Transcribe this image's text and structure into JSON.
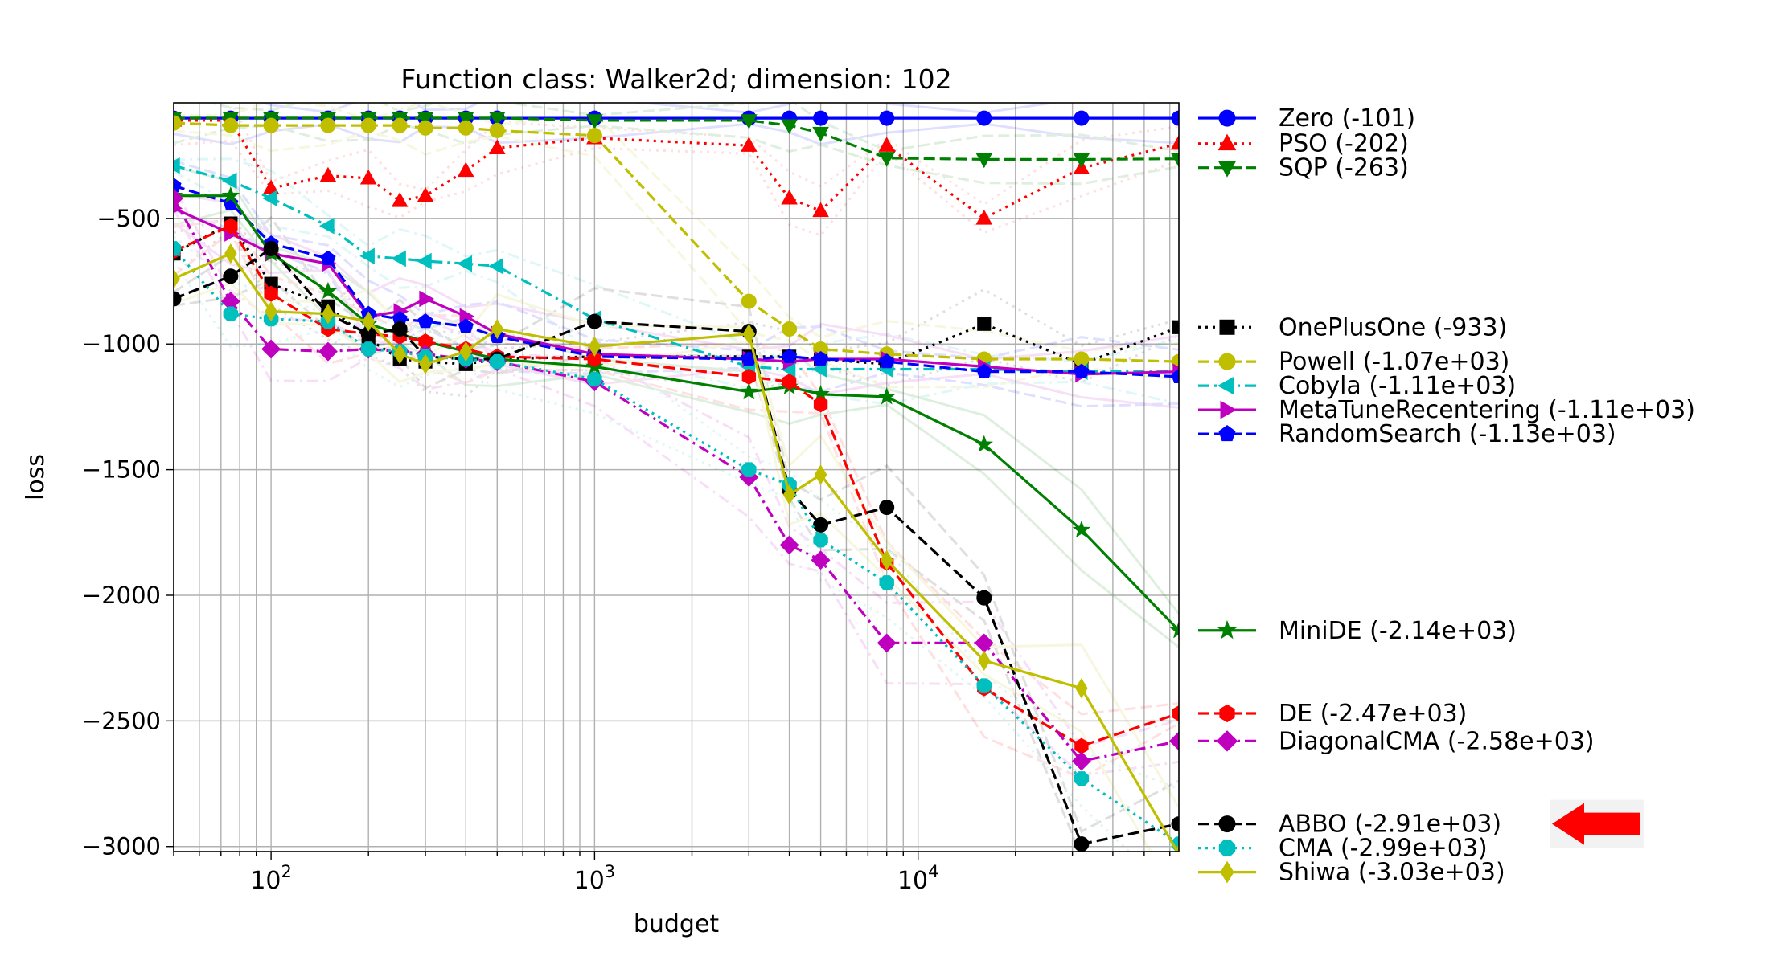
{
  "chart_data": {
    "type": "line",
    "title": "Function class: Walker2d; dimension: 102",
    "xlabel": "budget",
    "ylabel": "loss",
    "xscale": "log",
    "xlim": [
      50,
      64000
    ],
    "ylim": [
      -3020,
      -40
    ],
    "grid": true,
    "legend_position": "right-outside",
    "x_tick_labels": [
      {
        "value": 100,
        "base": "10",
        "exp": "2"
      },
      {
        "value": 1000,
        "base": "10",
        "exp": "3"
      },
      {
        "value": 10000,
        "base": "10",
        "exp": "4"
      }
    ],
    "y_ticks": [
      -500,
      -1000,
      -1500,
      -2000,
      -2500,
      -3000
    ],
    "y_tick_labels": [
      "−500",
      "−1000",
      "−1500",
      "−2000",
      "−2500",
      "−3000"
    ],
    "highlight_arrow": {
      "color": "#ff0000",
      "points_to": "ABBO (-2.91e+03)"
    },
    "series": [
      {
        "name": "Zero (-101)",
        "color": "#0000ff",
        "marker": "circle",
        "dash": "solid",
        "legend_y": -101,
        "points": [
          [
            50,
            -101
          ],
          [
            75,
            -101
          ],
          [
            100,
            -101
          ],
          [
            150,
            -101
          ],
          [
            200,
            -101
          ],
          [
            250,
            -101
          ],
          [
            300,
            -101
          ],
          [
            400,
            -101
          ],
          [
            500,
            -101
          ],
          [
            1000,
            -101
          ],
          [
            3000,
            -101
          ],
          [
            4000,
            -101
          ],
          [
            5000,
            -101
          ],
          [
            8000,
            -101
          ],
          [
            16000,
            -101
          ],
          [
            32000,
            -101
          ],
          [
            64000,
            -101
          ]
        ]
      },
      {
        "name": "PSO (-202)",
        "color": "#ff0000",
        "marker": "triangle-up",
        "dash": "dotted",
        "legend_y": -202,
        "points": [
          [
            50,
            -110
          ],
          [
            75,
            -110
          ],
          [
            100,
            -380
          ],
          [
            150,
            -330
          ],
          [
            200,
            -340
          ],
          [
            250,
            -430
          ],
          [
            300,
            -410
          ],
          [
            400,
            -310
          ],
          [
            500,
            -220
          ],
          [
            1000,
            -180
          ],
          [
            3000,
            -210
          ],
          [
            4000,
            -420
          ],
          [
            5000,
            -470
          ],
          [
            8000,
            -210
          ],
          [
            16000,
            -500
          ],
          [
            32000,
            -300
          ],
          [
            64000,
            -202
          ]
        ]
      },
      {
        "name": "SQP (-263)",
        "color": "#008000",
        "marker": "triangle-down",
        "dash": "dashed",
        "legend_y": -263,
        "points": [
          [
            50,
            -100
          ],
          [
            75,
            -100
          ],
          [
            100,
            -100
          ],
          [
            150,
            -100
          ],
          [
            200,
            -100
          ],
          [
            250,
            -100
          ],
          [
            300,
            -100
          ],
          [
            400,
            -100
          ],
          [
            500,
            -100
          ],
          [
            1000,
            -110
          ],
          [
            3000,
            -110
          ],
          [
            4000,
            -130
          ],
          [
            5000,
            -160
          ],
          [
            8000,
            -260
          ],
          [
            16000,
            -265
          ],
          [
            32000,
            -265
          ],
          [
            64000,
            -263
          ]
        ]
      },
      {
        "name": "OnePlusOne (-933)",
        "color": "#000000",
        "marker": "square",
        "dash": "dotted",
        "legend_y": -933,
        "points": [
          [
            50,
            -640
          ],
          [
            75,
            -520
          ],
          [
            100,
            -760
          ],
          [
            150,
            -850
          ],
          [
            200,
            -980
          ],
          [
            250,
            -1060
          ],
          [
            300,
            -1070
          ],
          [
            400,
            -1080
          ],
          [
            500,
            -1060
          ],
          [
            1000,
            -1050
          ],
          [
            3000,
            -1050
          ],
          [
            4000,
            -1050
          ],
          [
            5000,
            -1060
          ],
          [
            8000,
            -1080
          ],
          [
            16000,
            -920
          ],
          [
            32000,
            -1080
          ],
          [
            64000,
            -933
          ]
        ]
      },
      {
        "name": "Powell (-1.07e+03)",
        "color": "#bfbf00",
        "marker": "circle",
        "dash": "dashed",
        "legend_y": -1070,
        "points": [
          [
            50,
            -120
          ],
          [
            75,
            -130
          ],
          [
            100,
            -130
          ],
          [
            150,
            -130
          ],
          [
            200,
            -130
          ],
          [
            250,
            -130
          ],
          [
            300,
            -140
          ],
          [
            400,
            -140
          ],
          [
            500,
            -150
          ],
          [
            1000,
            -170
          ],
          [
            3000,
            -830
          ],
          [
            4000,
            -940
          ],
          [
            5000,
            -1020
          ],
          [
            8000,
            -1040
          ],
          [
            16000,
            -1060
          ],
          [
            32000,
            -1060
          ],
          [
            64000,
            -1070
          ]
        ]
      },
      {
        "name": "Cobyla (-1.11e+03)",
        "color": "#00bfbf",
        "marker": "triangle-left",
        "dash": "dashdot",
        "legend_y": -1110,
        "points": [
          [
            50,
            -290
          ],
          [
            75,
            -350
          ],
          [
            100,
            -420
          ],
          [
            150,
            -530
          ],
          [
            200,
            -650
          ],
          [
            250,
            -660
          ],
          [
            300,
            -670
          ],
          [
            400,
            -680
          ],
          [
            500,
            -690
          ],
          [
            1000,
            -900
          ],
          [
            3000,
            -1090
          ],
          [
            4000,
            -1100
          ],
          [
            5000,
            -1100
          ],
          [
            8000,
            -1100
          ],
          [
            16000,
            -1100
          ],
          [
            32000,
            -1110
          ],
          [
            64000,
            -1110
          ]
        ]
      },
      {
        "name": "MetaTuneRecentering (-1.11e+03)",
        "color": "#bf00bf",
        "marker": "triangle-right",
        "dash": "solid",
        "legend_y": -1110,
        "points": [
          [
            50,
            -460
          ],
          [
            75,
            -560
          ],
          [
            100,
            -640
          ],
          [
            150,
            -680
          ],
          [
            200,
            -890
          ],
          [
            250,
            -870
          ],
          [
            300,
            -820
          ],
          [
            400,
            -890
          ],
          [
            500,
            -960
          ],
          [
            1000,
            -1040
          ],
          [
            3000,
            -1060
          ],
          [
            4000,
            -1070
          ],
          [
            5000,
            -1060
          ],
          [
            8000,
            -1060
          ],
          [
            16000,
            -1090
          ],
          [
            32000,
            -1120
          ],
          [
            64000,
            -1110
          ]
        ]
      },
      {
        "name": "RandomSearch (-1.13e+03)",
        "color": "#0000ff",
        "marker": "pentagon",
        "dash": "dashed",
        "legend_y": -1130,
        "points": [
          [
            50,
            -370
          ],
          [
            75,
            -440
          ],
          [
            100,
            -600
          ],
          [
            150,
            -660
          ],
          [
            200,
            -880
          ],
          [
            250,
            -900
          ],
          [
            300,
            -910
          ],
          [
            400,
            -930
          ],
          [
            500,
            -970
          ],
          [
            1000,
            -1050
          ],
          [
            3000,
            -1060
          ],
          [
            4000,
            -1050
          ],
          [
            5000,
            -1060
          ],
          [
            8000,
            -1070
          ],
          [
            16000,
            -1110
          ],
          [
            32000,
            -1110
          ],
          [
            64000,
            -1130
          ]
        ]
      },
      {
        "name": "MiniDE (-2.14e+03)",
        "color": "#008000",
        "marker": "star",
        "dash": "solid",
        "legend_y": -2140,
        "points": [
          [
            50,
            -410
          ],
          [
            75,
            -410
          ],
          [
            100,
            -640
          ],
          [
            150,
            -790
          ],
          [
            200,
            -920
          ],
          [
            250,
            -960
          ],
          [
            300,
            -990
          ],
          [
            400,
            -1030
          ],
          [
            500,
            -1060
          ],
          [
            1000,
            -1090
          ],
          [
            3000,
            -1190
          ],
          [
            4000,
            -1170
          ],
          [
            5000,
            -1200
          ],
          [
            8000,
            -1210
          ],
          [
            16000,
            -1400
          ],
          [
            32000,
            -1740
          ],
          [
            64000,
            -2140
          ]
        ]
      },
      {
        "name": "DE (-2.47e+03)",
        "color": "#ff0000",
        "marker": "hexagon",
        "dash": "dashed",
        "legend_y": -2470,
        "points": [
          [
            50,
            -630
          ],
          [
            75,
            -530
          ],
          [
            100,
            -800
          ],
          [
            150,
            -940
          ],
          [
            200,
            -960
          ],
          [
            250,
            -970
          ],
          [
            300,
            -990
          ],
          [
            400,
            -1020
          ],
          [
            500,
            -1050
          ],
          [
            1000,
            -1060
          ],
          [
            3000,
            -1130
          ],
          [
            4000,
            -1150
          ],
          [
            5000,
            -1240
          ],
          [
            8000,
            -1870
          ],
          [
            16000,
            -2370
          ],
          [
            32000,
            -2600
          ],
          [
            64000,
            -2470
          ]
        ]
      },
      {
        "name": "DiagonalCMA (-2.58e+03)",
        "color": "#bf00bf",
        "marker": "diamond",
        "dash": "dashdot",
        "legend_y": -2580,
        "points": [
          [
            50,
            -420
          ],
          [
            75,
            -830
          ],
          [
            100,
            -1020
          ],
          [
            150,
            -1030
          ],
          [
            200,
            -1020
          ],
          [
            250,
            -1030
          ],
          [
            300,
            -1040
          ],
          [
            400,
            -1060
          ],
          [
            500,
            -1070
          ],
          [
            1000,
            -1150
          ],
          [
            3000,
            -1530
          ],
          [
            4000,
            -1800
          ],
          [
            5000,
            -1860
          ],
          [
            8000,
            -2190
          ],
          [
            16000,
            -2190
          ],
          [
            32000,
            -2660
          ],
          [
            64000,
            -2580
          ]
        ]
      },
      {
        "name": "ABBO (-2.91e+03)",
        "color": "#000000",
        "marker": "circle",
        "dash": "dashed",
        "legend_y": -2910,
        "points": [
          [
            50,
            -820
          ],
          [
            75,
            -730
          ],
          [
            100,
            -620
          ],
          [
            150,
            -880
          ],
          [
            200,
            -960
          ],
          [
            250,
            -940
          ],
          [
            300,
            -1050
          ],
          [
            400,
            -1060
          ],
          [
            500,
            -1060
          ],
          [
            1000,
            -910
          ],
          [
            3000,
            -950
          ],
          [
            4000,
            -1580
          ],
          [
            5000,
            -1720
          ],
          [
            8000,
            -1650
          ],
          [
            16000,
            -2010
          ],
          [
            32000,
            -2990
          ],
          [
            64000,
            -2910
          ]
        ]
      },
      {
        "name": "CMA (-2.99e+03)",
        "color": "#00bfbf",
        "marker": "octagon",
        "dash": "dotted",
        "legend_y": -2990,
        "points": [
          [
            50,
            -620
          ],
          [
            75,
            -880
          ],
          [
            100,
            -900
          ],
          [
            150,
            -910
          ],
          [
            200,
            -1020
          ],
          [
            250,
            -1030
          ],
          [
            300,
            -1050
          ],
          [
            400,
            -1060
          ],
          [
            500,
            -1070
          ],
          [
            1000,
            -1140
          ],
          [
            3000,
            -1500
          ],
          [
            4000,
            -1560
          ],
          [
            5000,
            -1780
          ],
          [
            8000,
            -1950
          ],
          [
            16000,
            -2360
          ],
          [
            32000,
            -2730
          ],
          [
            64000,
            -2990
          ]
        ]
      },
      {
        "name": "Shiwa (-3.03e+03)",
        "color": "#bfbf00",
        "marker": "thin-diamond",
        "dash": "solid",
        "legend_y": -3030,
        "points": [
          [
            50,
            -740
          ],
          [
            75,
            -640
          ],
          [
            100,
            -870
          ],
          [
            150,
            -880
          ],
          [
            200,
            -910
          ],
          [
            250,
            -1040
          ],
          [
            300,
            -1080
          ],
          [
            400,
            -1030
          ],
          [
            500,
            -940
          ],
          [
            1000,
            -1010
          ],
          [
            3000,
            -960
          ],
          [
            4000,
            -1600
          ],
          [
            5000,
            -1520
          ],
          [
            8000,
            -1860
          ],
          [
            16000,
            -2260
          ],
          [
            32000,
            -2370
          ],
          [
            64000,
            -3030
          ]
        ]
      }
    ]
  }
}
